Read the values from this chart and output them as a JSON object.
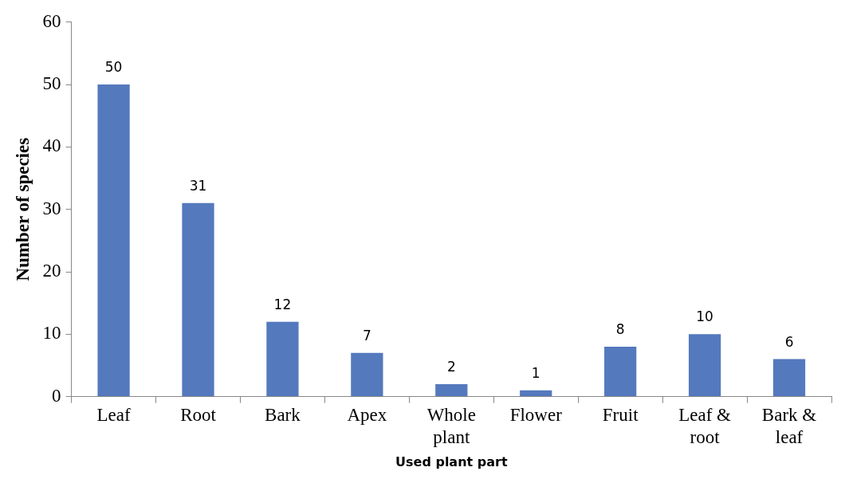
{
  "chart_data": {
    "type": "bar",
    "categories": [
      "Leaf",
      "Root",
      "Bark",
      "Apex",
      "Whole plant",
      "Flower",
      "Fruit",
      "Leaf & root",
      "Bark & leaf"
    ],
    "values": [
      50,
      31,
      12,
      7,
      2,
      1,
      8,
      10,
      6
    ],
    "color": "#5479bd",
    "ylim": [
      0,
      60
    ],
    "yticks": [
      0,
      10,
      20,
      30,
      40,
      50,
      60
    ],
    "xlabel": "Used plant part",
    "ylabel": "Number of species",
    "data_labels": true,
    "grid": false,
    "legend": false
  }
}
